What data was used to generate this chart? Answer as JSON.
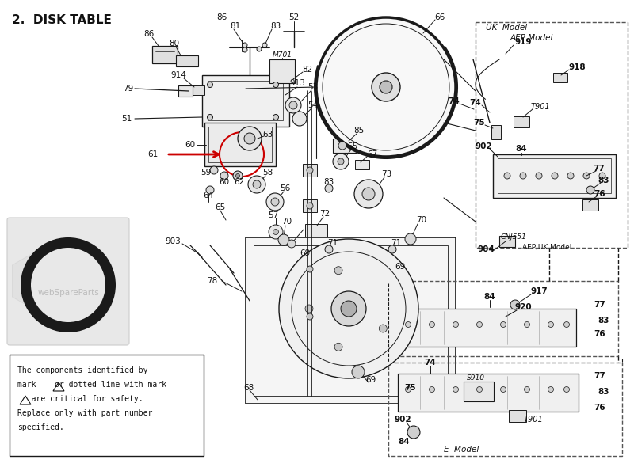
{
  "title": "2.  DISK TABLE",
  "bg_color": "#ffffff",
  "line_color": "#1a1a1a",
  "text_color": "#111111",
  "arrow_color": "#cc0000",
  "watermark": "webSpareParts",
  "notice_text_1": "The components identified by",
  "notice_text_2": "mark    or dotted line with mark",
  "notice_text_3": "   are critical for safety.",
  "notice_text_4": "Replace only with part number",
  "notice_text_5": "specified.",
  "uk_model": "UK  Model",
  "aep_model": "AEP Model",
  "e_model": "E  Model",
  "aep_uk_model": "AEP,UK Model",
  "cnj551": "CNJ551",
  "m701": "M701",
  "s910": "S910",
  "t901_1": "T901",
  "t901_2": "T901"
}
